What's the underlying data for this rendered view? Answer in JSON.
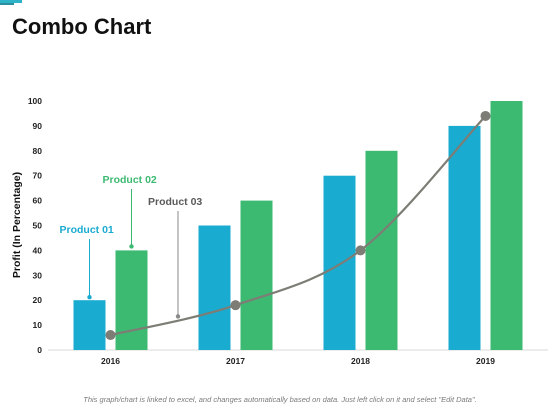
{
  "page": {
    "title": "Combo Chart",
    "footnote": "This graph/chart is linked to excel, and changes automatically based on data. Just left click on it and select \"Edit Data\"."
  },
  "chart_data": {
    "type": "bar",
    "title": "",
    "xlabel": "",
    "ylabel": "Profit (In Percentage)",
    "ylim": [
      0,
      100
    ],
    "yticks": [
      0,
      10,
      20,
      30,
      40,
      50,
      60,
      70,
      80,
      90,
      100
    ],
    "grid": false,
    "categories": [
      "2016",
      "2017",
      "2018",
      "2019"
    ],
    "series": [
      {
        "name": "Product 01",
        "type": "bar",
        "color": "#1aabd0",
        "values": [
          20,
          50,
          70,
          90
        ]
      },
      {
        "name": "Product 02",
        "type": "bar",
        "color": "#3dba72",
        "values": [
          40,
          60,
          80,
          100
        ]
      },
      {
        "name": "Product 03",
        "type": "line",
        "color": "#7d7d75",
        "values": [
          6,
          18,
          40,
          94
        ]
      }
    ]
  }
}
